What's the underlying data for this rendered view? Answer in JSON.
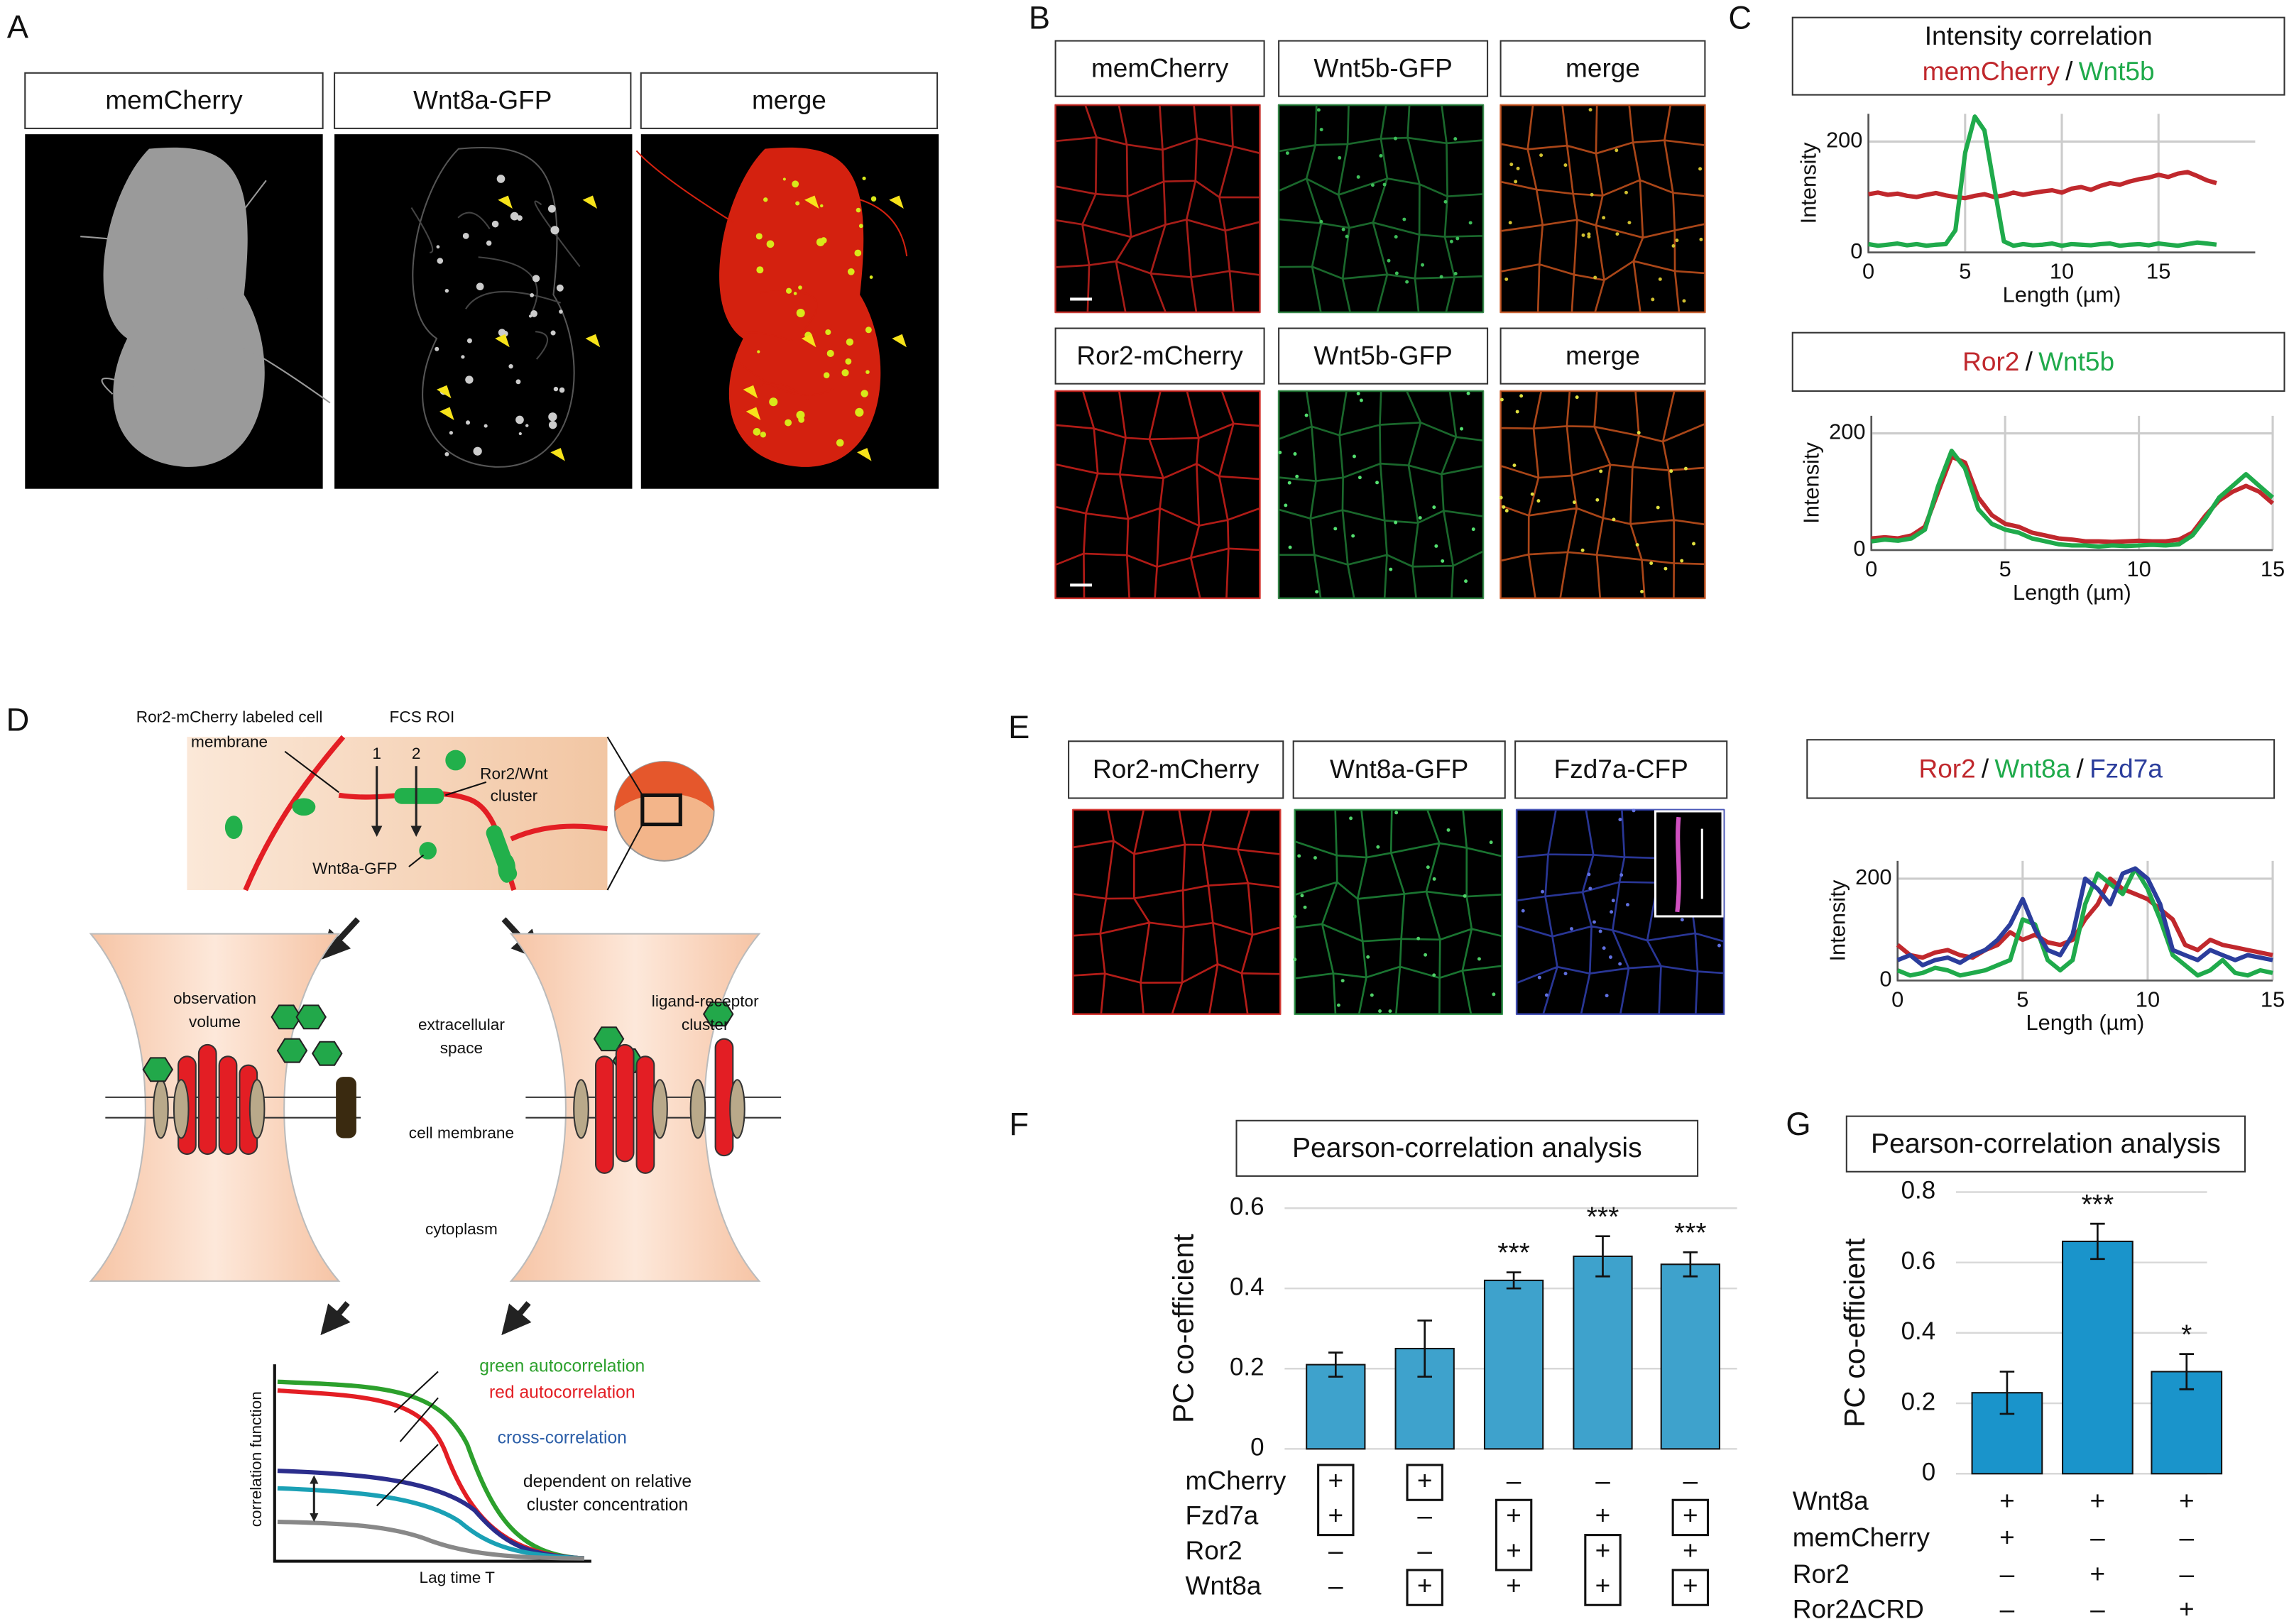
{
  "panel_labels": [
    "A",
    "B",
    "C",
    "D",
    "E",
    "F",
    "G"
  ],
  "A": {
    "labels": [
      "memCherry",
      "Wnt8a-GFP",
      "merge"
    ]
  },
  "B": {
    "labels": [
      "memCherry",
      "Wnt5b-GFP",
      "merge",
      "Ror2-mCherry",
      "Wnt5b-GFP",
      "merge"
    ]
  },
  "D": {
    "labels": [
      "Ror2-mCherry labeled cell",
      "membrane",
      "FCS ROI",
      "1",
      "2",
      "Ror2/Wnt",
      "cluster",
      "Wnt8a-GFP",
      "observation",
      "volume",
      "extracellular",
      "space",
      "ligand-receptor",
      "cluster",
      "cell membrane",
      "cytoplasm",
      "green autocorrelation",
      "red autocorrelation",
      "cross-correlation",
      "dependent on relative",
      "cluster concentration",
      "correlation function",
      "Lag time T"
    ]
  },
  "E": {
    "labels": [
      "Ror2-mCherry",
      "Wnt8a-GFP",
      "Fzd7a-CFP"
    ]
  },
  "chart_data": [
    {
      "type": "line",
      "title": "Intensity correlation",
      "legend_separator": "/",
      "xlabel": "Length (µm)",
      "ylabel": "Intensity",
      "grid": true,
      "x": [
        0,
        0.5,
        1,
        1.5,
        2,
        2.5,
        3,
        3.5,
        4,
        4.5,
        5,
        5.5,
        6,
        6.5,
        7,
        7.5,
        8,
        8.5,
        9,
        9.5,
        10,
        10.5,
        11,
        11.5,
        12,
        12.5,
        13,
        13.5,
        14,
        14.5,
        15,
        15.5,
        16,
        16.5,
        17,
        17.5,
        18
      ],
      "series": [
        {
          "name": "memCherry",
          "color": "#c0282d",
          "values": [
            105,
            108,
            104,
            106,
            102,
            100,
            104,
            107,
            103,
            100,
            98,
            102,
            105,
            100,
            103,
            108,
            104,
            107,
            110,
            112,
            108,
            115,
            118,
            113,
            120,
            125,
            122,
            128,
            132,
            135,
            140,
            136,
            142,
            145,
            138,
            130,
            125
          ]
        },
        {
          "name": "Wnt5b",
          "color": "#1faa4b",
          "values": [
            15,
            12,
            14,
            16,
            13,
            15,
            12,
            14,
            15,
            40,
            180,
            245,
            220,
            120,
            20,
            12,
            15,
            13,
            14,
            16,
            12,
            15,
            14,
            13,
            15,
            16,
            12,
            14,
            15,
            13,
            16,
            14,
            12,
            15,
            18,
            16,
            14
          ]
        }
      ],
      "xlim": [
        0,
        20
      ],
      "ylim": [
        0,
        250
      ],
      "xticks": [
        0,
        5,
        10,
        15
      ],
      "yticks": [
        0,
        200
      ]
    },
    {
      "type": "line",
      "legend_separator": "/",
      "xlabel": "Length (µm)",
      "ylabel": "Intensity",
      "grid": true,
      "x": [
        0,
        0.5,
        1,
        1.5,
        2,
        2.5,
        3,
        3.5,
        4,
        4.5,
        5,
        5.5,
        6,
        6.5,
        7,
        7.5,
        8,
        8.5,
        9,
        9.5,
        10,
        10.5,
        11,
        11.5,
        12,
        12.5,
        13,
        13.5,
        14,
        14.5,
        15
      ],
      "series": [
        {
          "name": "Ror2",
          "color": "#c0282d",
          "values": [
            20,
            22,
            20,
            25,
            40,
            100,
            160,
            150,
            90,
            60,
            45,
            40,
            30,
            25,
            20,
            18,
            15,
            15,
            14,
            15,
            16,
            15,
            15,
            18,
            30,
            60,
            85,
            100,
            110,
            100,
            80
          ]
        },
        {
          "name": "Wnt5b",
          "color": "#1faa4b",
          "values": [
            15,
            18,
            16,
            20,
            35,
            110,
            170,
            140,
            70,
            45,
            35,
            30,
            20,
            15,
            10,
            8,
            8,
            6,
            8,
            7,
            8,
            9,
            8,
            10,
            25,
            55,
            90,
            110,
            130,
            110,
            90
          ]
        }
      ],
      "xlim": [
        0,
        15
      ],
      "ylim": [
        0,
        230
      ],
      "xticks": [
        0,
        5,
        10,
        15
      ],
      "yticks": [
        0,
        200
      ]
    },
    {
      "type": "line",
      "legend_separator": "/",
      "xlabel": "Length (µm)",
      "ylabel": "Intensity",
      "grid": true,
      "x": [
        0,
        0.5,
        1,
        1.5,
        2,
        2.5,
        3,
        3.5,
        4,
        4.5,
        5,
        5.5,
        6,
        6.5,
        7,
        7.5,
        8,
        8.5,
        9,
        9.5,
        10,
        10.5,
        11,
        11.5,
        12,
        12.5,
        13,
        13.5,
        14,
        14.5,
        15
      ],
      "series": [
        {
          "name": "Ror2",
          "color": "#c0282d",
          "values": [
            70,
            50,
            45,
            55,
            60,
            50,
            45,
            60,
            70,
            95,
            80,
            90,
            75,
            70,
            80,
            120,
            150,
            200,
            180,
            170,
            160,
            140,
            120,
            70,
            60,
            80,
            70,
            65,
            60,
            55,
            50
          ]
        },
        {
          "name": "Wnt8a",
          "color": "#1faa4b",
          "values": [
            20,
            10,
            15,
            25,
            20,
            10,
            15,
            20,
            30,
            40,
            120,
            110,
            40,
            20,
            40,
            150,
            210,
            190,
            170,
            220,
            180,
            120,
            50,
            30,
            10,
            20,
            40,
            15,
            10,
            20,
            15
          ]
        },
        {
          "name": "Fzd7a",
          "color": "#2b3d9c",
          "values": [
            40,
            50,
            30,
            40,
            45,
            35,
            50,
            60,
            80,
            110,
            160,
            100,
            60,
            50,
            90,
            200,
            180,
            150,
            210,
            220,
            200,
            150,
            60,
            50,
            40,
            60,
            50,
            40,
            50,
            45,
            40
          ]
        }
      ],
      "xlim": [
        0,
        15
      ],
      "ylim": [
        0,
        235
      ],
      "xticks": [
        0,
        5,
        10,
        15
      ],
      "yticks": [
        0,
        200
      ]
    },
    {
      "type": "bar",
      "title": "Pearson-correlation analysis",
      "ylabel": "PC co-efficient",
      "color": "#3ea2cc",
      "grid": true,
      "values": [
        0.21,
        0.25,
        0.42,
        0.48,
        0.46
      ],
      "errors": [
        0.03,
        0.07,
        0.02,
        0.05,
        0.03
      ],
      "annotations": [
        null,
        null,
        "***",
        "***",
        "***"
      ],
      "conditions": [
        {
          "name": "mCherry",
          "signs": [
            "+",
            "+",
            "–",
            "–",
            "–"
          ]
        },
        {
          "name": "Fzd7a",
          "signs": [
            "+",
            "–",
            "+",
            "+",
            "+"
          ]
        },
        {
          "name": "Ror2",
          "signs": [
            "–",
            "–",
            "+",
            "+",
            "+"
          ]
        },
        {
          "name": "Wnt8a",
          "signs": [
            "–",
            "+",
            "+",
            "+",
            "+"
          ]
        }
      ],
      "ylim": [
        0,
        0.6
      ],
      "yticks": [
        0,
        0.2,
        0.4,
        0.6
      ]
    },
    {
      "type": "bar",
      "title": "Pearson-correlation analysis",
      "ylabel": "PC co-efficient",
      "color": "#1a94cb",
      "grid": true,
      "values": [
        0.23,
        0.66,
        0.29
      ],
      "errors": [
        0.06,
        0.05,
        0.05
      ],
      "annotations": [
        null,
        "***",
        "*"
      ],
      "conditions": [
        {
          "name": "Wnt8a",
          "signs": [
            "+",
            "+",
            "+"
          ]
        },
        {
          "name": "memCherry",
          "signs": [
            "+",
            "–",
            "–"
          ]
        },
        {
          "name": "Ror2",
          "signs": [
            "–",
            "+",
            "–"
          ]
        },
        {
          "name": "Ror2ΔCRD",
          "signs": [
            "–",
            "–",
            "+"
          ]
        }
      ],
      "ylim": [
        0,
        0.8
      ],
      "yticks": [
        0,
        0.2,
        0.4,
        0.6,
        0.8
      ]
    }
  ]
}
